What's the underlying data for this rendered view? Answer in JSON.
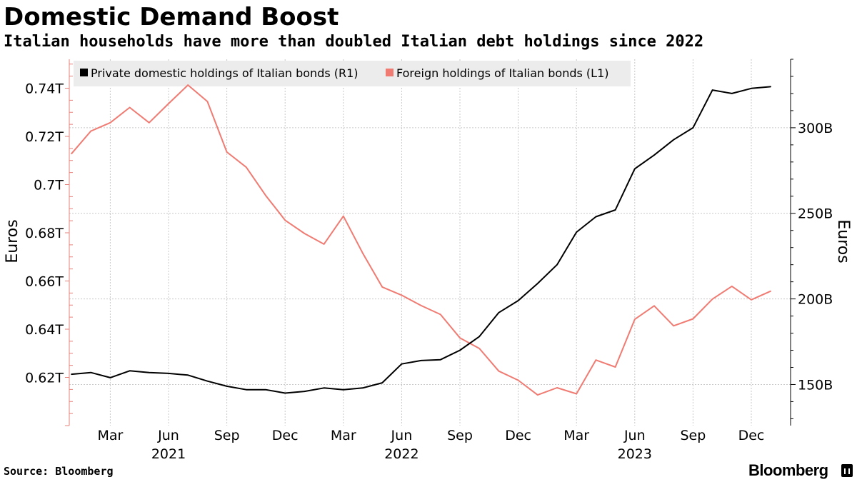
{
  "title": "Domestic Demand Boost",
  "subtitle": "Italian households have more than doubled Italian debt holdings since 2022",
  "source": "Source: Bloomberg",
  "brand": "Bloomberg",
  "brand_icon": "bloomberg-terminal-icon",
  "chart_data": {
    "type": "line",
    "ylabel_left": "Euros",
    "ylabel_right": "Euros",
    "yaxis_left": {
      "ticks": [
        0.62,
        0.64,
        0.66,
        0.68,
        0.7,
        0.72,
        0.74
      ],
      "tick_labels": [
        "0.62T",
        "0.64T",
        "0.66T",
        "0.68T",
        "0.7T",
        "0.72T",
        "0.74T"
      ],
      "range": [
        0.6,
        0.752
      ]
    },
    "yaxis_right": {
      "ticks": [
        150,
        200,
        250,
        300
      ],
      "tick_labels": [
        "150B",
        "200B",
        "250B",
        "300B"
      ],
      "range": [
        126,
        340
      ]
    },
    "x": [
      "2021-01",
      "2021-02",
      "2021-03",
      "2021-04",
      "2021-05",
      "2021-06",
      "2021-07",
      "2021-08",
      "2021-09",
      "2021-10",
      "2021-11",
      "2021-12",
      "2022-01",
      "2022-02",
      "2022-03",
      "2022-04",
      "2022-05",
      "2022-06",
      "2022-07",
      "2022-08",
      "2022-09",
      "2022-10",
      "2022-11",
      "2022-12",
      "2023-01",
      "2023-02",
      "2023-03",
      "2023-04",
      "2023-05",
      "2023-06",
      "2023-07",
      "2023-08",
      "2023-09",
      "2023-10",
      "2023-11",
      "2023-12",
      "2024-01"
    ],
    "xaxis": {
      "month_ticks": [
        {
          "x": "2021-03",
          "label": "Mar"
        },
        {
          "x": "2021-06",
          "label": "Jun"
        },
        {
          "x": "2021-09",
          "label": "Sep"
        },
        {
          "x": "2021-12",
          "label": "Dec"
        },
        {
          "x": "2022-03",
          "label": "Mar"
        },
        {
          "x": "2022-06",
          "label": "Jun"
        },
        {
          "x": "2022-09",
          "label": "Sep"
        },
        {
          "x": "2022-12",
          "label": "Dec"
        },
        {
          "x": "2023-03",
          "label": "Mar"
        },
        {
          "x": "2023-06",
          "label": "Jun"
        },
        {
          "x": "2023-09",
          "label": "Sep"
        },
        {
          "x": "2023-12",
          "label": "Dec"
        }
      ],
      "year_labels": [
        {
          "x": "2021-06",
          "label": "2021"
        },
        {
          "x": "2022-06",
          "label": "2022"
        },
        {
          "x": "2023-06",
          "label": "2023"
        }
      ]
    },
    "series": [
      {
        "name": "Private domestic holdings of Italian bonds (R1)",
        "axis": "right",
        "color": "#000000",
        "unit": "B",
        "values": [
          156,
          157,
          154,
          158,
          157,
          156.5,
          155.5,
          152,
          149,
          147,
          147,
          145,
          146,
          148,
          147,
          148,
          151,
          162,
          164,
          164.5,
          170,
          178,
          192,
          199,
          209,
          220,
          239,
          248,
          252,
          276,
          284,
          293,
          300,
          322,
          320,
          323,
          324
        ]
      },
      {
        "name": "Foreign holdings of Italian bonds (L1)",
        "axis": "left",
        "color": "#f07b72",
        "unit": "T",
        "values": [
          0.7128,
          0.7222,
          0.7257,
          0.732,
          0.7257,
          0.7336,
          0.7413,
          0.7345,
          0.7135,
          0.7072,
          0.6955,
          0.6852,
          0.6797,
          0.6753,
          0.6869,
          0.6715,
          0.6575,
          0.6541,
          0.6498,
          0.6461,
          0.6364,
          0.632,
          0.6226,
          0.6188,
          0.6127,
          0.6157,
          0.6132,
          0.6272,
          0.6243,
          0.6441,
          0.6497,
          0.6414,
          0.6443,
          0.6525,
          0.6578,
          0.6522,
          0.6558
        ]
      }
    ],
    "legend_position": "top-left"
  }
}
